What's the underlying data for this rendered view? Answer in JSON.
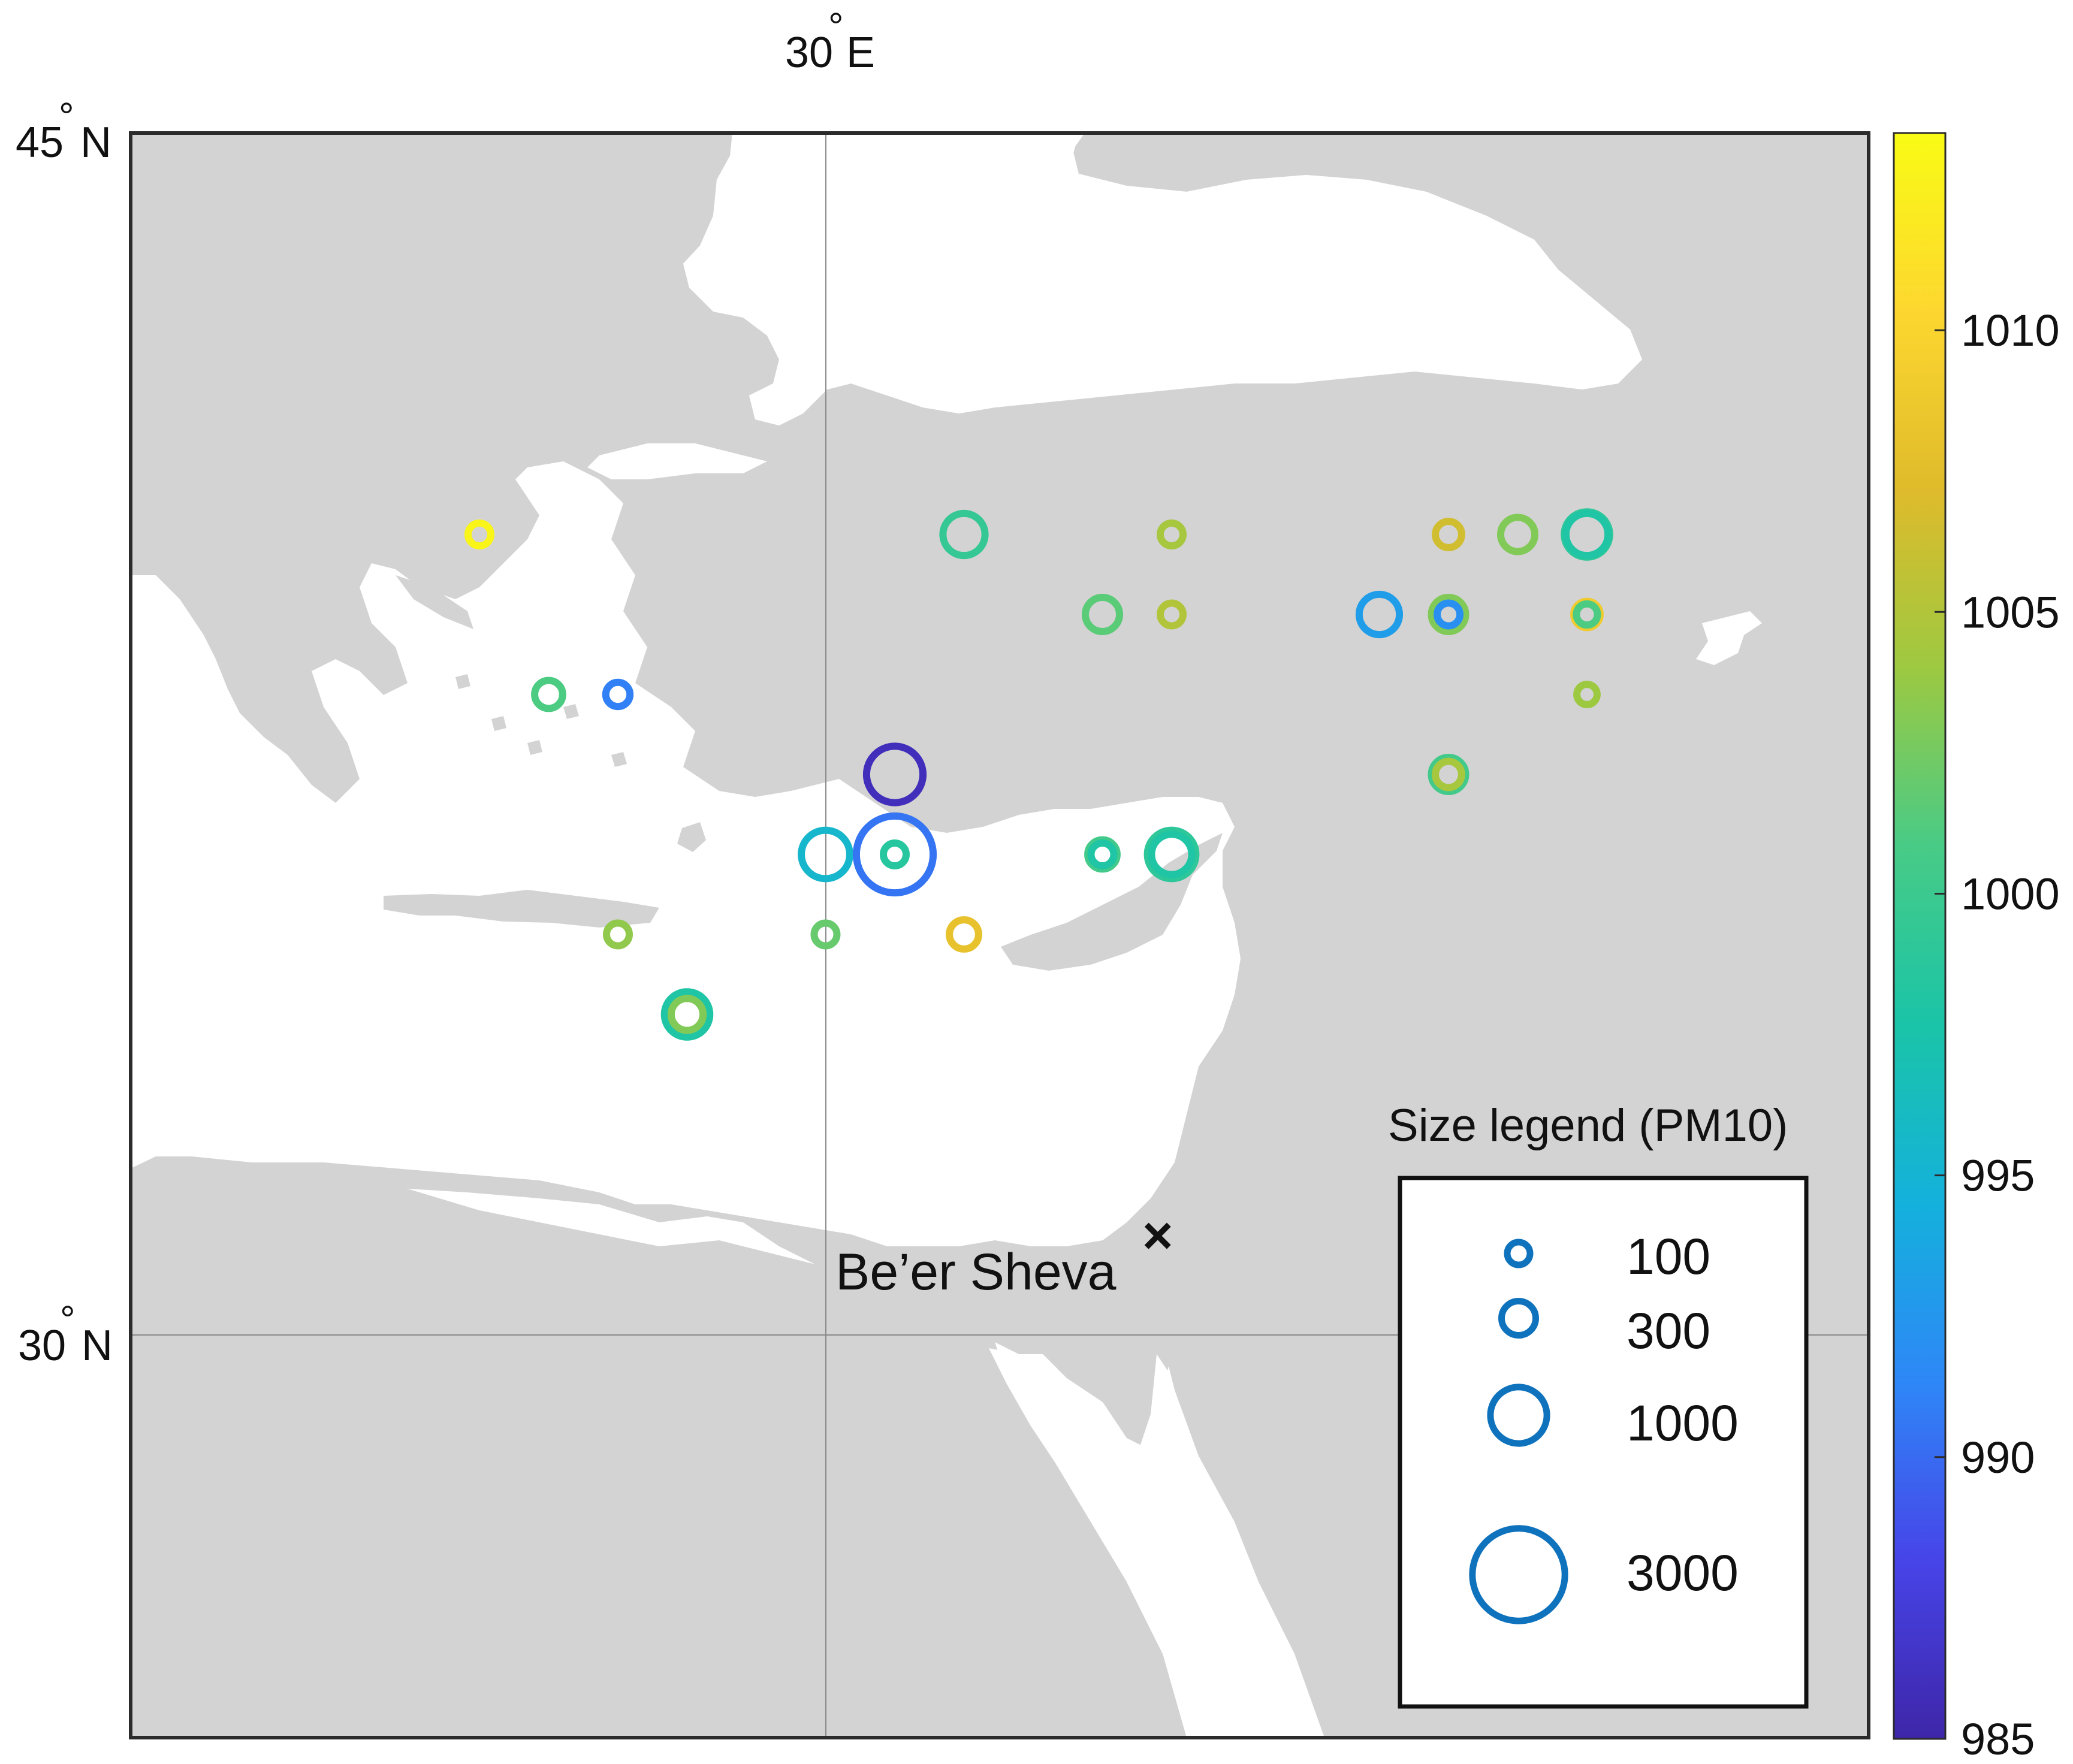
{
  "map": {
    "lon_label": "30° E",
    "lon_label_parts": {
      "num": "30",
      "deg": "°",
      "dir": "E"
    },
    "lat_labels": [
      {
        "num": "45",
        "deg": "°",
        "dir": "N",
        "lat": 45
      },
      {
        "num": "30",
        "deg": "°",
        "dir": "N",
        "lat": 30
      }
    ],
    "grid_lon": 30,
    "grid_lat": 30,
    "land_color": "#d3d3d3",
    "sea_color": "#ffffff",
    "frame_color": "#2b2b2b"
  },
  "place": {
    "name": "Be’er Sheva",
    "marker": "×"
  },
  "colorbar": {
    "min": 985,
    "max": 1013.5,
    "ticks": [
      {
        "value": 985,
        "label": "985"
      },
      {
        "value": 990,
        "label": "990"
      },
      {
        "value": 995,
        "label": "995"
      },
      {
        "value": 1000,
        "label": "1000"
      },
      {
        "value": 1005,
        "label": "1005"
      },
      {
        "value": 1010,
        "label": "1010"
      }
    ],
    "colormap": "parula",
    "stops": [
      "#3e26a8",
      "#4744e8",
      "#2e87f7",
      "#14b1dc",
      "#1ac4a8",
      "#48cb86",
      "#9dc941",
      "#dfbb2b",
      "#fdd72f",
      "#f9fb15"
    ]
  },
  "size_legend": {
    "title": "Size legend (PM10)",
    "color": "#0f72bd",
    "entries": [
      {
        "value": 100,
        "label": "100"
      },
      {
        "value": 300,
        "label": "300"
      },
      {
        "value": 1000,
        "label": "1000"
      },
      {
        "value": 3000,
        "label": "3000"
      }
    ]
  },
  "chart_data": {
    "type": "scatter",
    "encoding": "ring position = grid cell of observation; ring size = PM10; ring colour = pressure (colorbar)",
    "points": [
      {
        "col": 1,
        "row": 1,
        "pm10": 100,
        "pressure": 1013
      },
      {
        "col": 2,
        "row": 3,
        "pm10": 180,
        "pressure": 1001
      },
      {
        "col": 3,
        "row": 3,
        "pm10": 120,
        "pressure": 991
      },
      {
        "col": 3,
        "row": 6,
        "pm10": 100,
        "pressure": 1003.5
      },
      {
        "col": 4,
        "row": 7,
        "pm10": 600,
        "pressure": 998
      },
      {
        "col": 4,
        "row": 7,
        "pm10": 250,
        "pressure": 1003
      },
      {
        "col": 6,
        "row": 5,
        "pm10": 700,
        "pressure": 995.5
      },
      {
        "col": 6,
        "row": 6,
        "pm10": 100,
        "pressure": 1002
      },
      {
        "col": 7,
        "row": 4,
        "pm10": 1000,
        "pressure": 986
      },
      {
        "col": 7,
        "row": 5,
        "pm10": 2000,
        "pressure": 990.5
      },
      {
        "col": 7,
        "row": 5,
        "pm10": 100,
        "pressure": 998.5
      },
      {
        "col": 8,
        "row": 1,
        "pm10": 500,
        "pressure": 999.5
      },
      {
        "col": 8,
        "row": 6,
        "pm10": 200,
        "pressure": 1008
      },
      {
        "col": 10,
        "row": 2,
        "pm10": 300,
        "pressure": 1001.5
      },
      {
        "col": 10,
        "row": 5,
        "pm10": 200,
        "pressure": 1000.5
      },
      {
        "col": 10,
        "row": 5,
        "pm10": 100,
        "pressure": 998
      },
      {
        "col": 11,
        "row": 1,
        "pm10": 100,
        "pressure": 1004.5
      },
      {
        "col": 11,
        "row": 2,
        "pm10": 100,
        "pressure": 1005
      },
      {
        "col": 11,
        "row": 5,
        "pm10": 700,
        "pressure": 999
      },
      {
        "col": 11,
        "row": 5,
        "pm10": 450,
        "pressure": 998
      },
      {
        "col": 14,
        "row": 2,
        "pm10": 450,
        "pressure": 993
      },
      {
        "col": 15,
        "row": 1,
        "pm10": 150,
        "pressure": 1006.5
      },
      {
        "col": 15,
        "row": 2,
        "pm10": 300,
        "pressure": 1003
      },
      {
        "col": 15,
        "row": 2,
        "pm10": 100,
        "pressure": 992
      },
      {
        "col": 15,
        "row": 4,
        "pm10": 300,
        "pressure": 1000.5
      },
      {
        "col": 15,
        "row": 4,
        "pm10": 150,
        "pressure": 1004.5
      },
      {
        "col": 16,
        "row": 1,
        "pm10": 300,
        "pressure": 1003
      },
      {
        "col": 17,
        "row": 1,
        "pm10": 600,
        "pressure": 999
      },
      {
        "col": 17,
        "row": 1,
        "pm10": 500,
        "pressure": 998
      },
      {
        "col": 17,
        "row": 2,
        "pm10": 150,
        "pressure": 1009
      },
      {
        "col": 17,
        "row": 2,
        "pm10": 80,
        "pressure": 1001
      },
      {
        "col": 17,
        "row": 3,
        "pm10": 70,
        "pressure": 1004
      }
    ]
  }
}
